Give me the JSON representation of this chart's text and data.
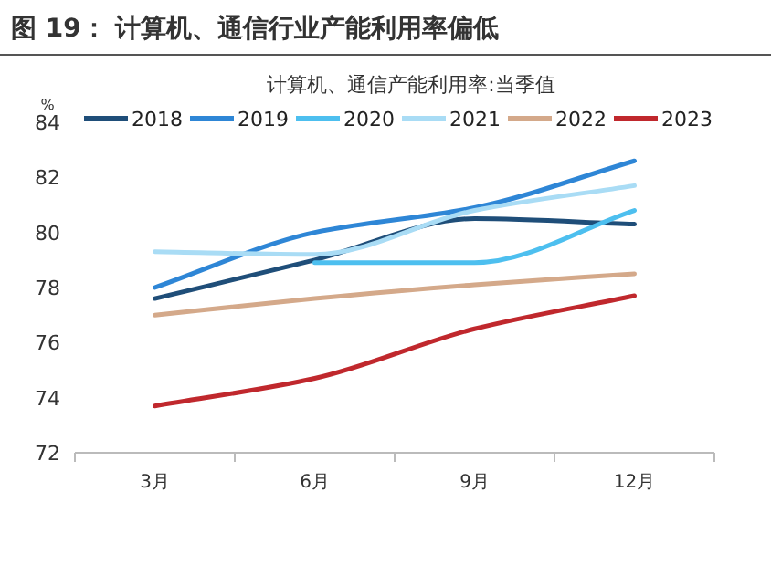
{
  "chart_data": {
    "type": "line",
    "title": "图 19：    计算机、通信行业产能利用率偏低",
    "subtitle": "计算机、通信产能利用率:当季值",
    "ylabel": "%",
    "categories": [
      "3月",
      "6月",
      "9月",
      "12月"
    ],
    "series": [
      {
        "name": "2018",
        "color": "#1f4e79",
        "values": [
          77.6,
          79.0,
          80.5,
          80.3
        ]
      },
      {
        "name": "2019",
        "color": "#2e86d6",
        "values": [
          78.0,
          80.0,
          80.9,
          82.6
        ]
      },
      {
        "name": "2020",
        "color": "#4dbfef",
        "values": [
          null,
          78.9,
          78.9,
          80.8
        ]
      },
      {
        "name": "2021",
        "color": "#a9dcf5",
        "values": [
          79.3,
          79.2,
          80.8,
          81.7
        ]
      },
      {
        "name": "2022",
        "color": "#d4a98a",
        "values": [
          77.0,
          77.6,
          78.1,
          78.5
        ]
      },
      {
        "name": "2023",
        "color": "#c0282d",
        "values": [
          73.7,
          74.7,
          76.5,
          77.7
        ]
      }
    ],
    "ylim": [
      72,
      84
    ],
    "yticks": [
      72,
      74,
      76,
      78,
      80,
      82,
      84
    ],
    "legend": "top",
    "grid": false,
    "marker": "none",
    "line_style": "solid"
  }
}
